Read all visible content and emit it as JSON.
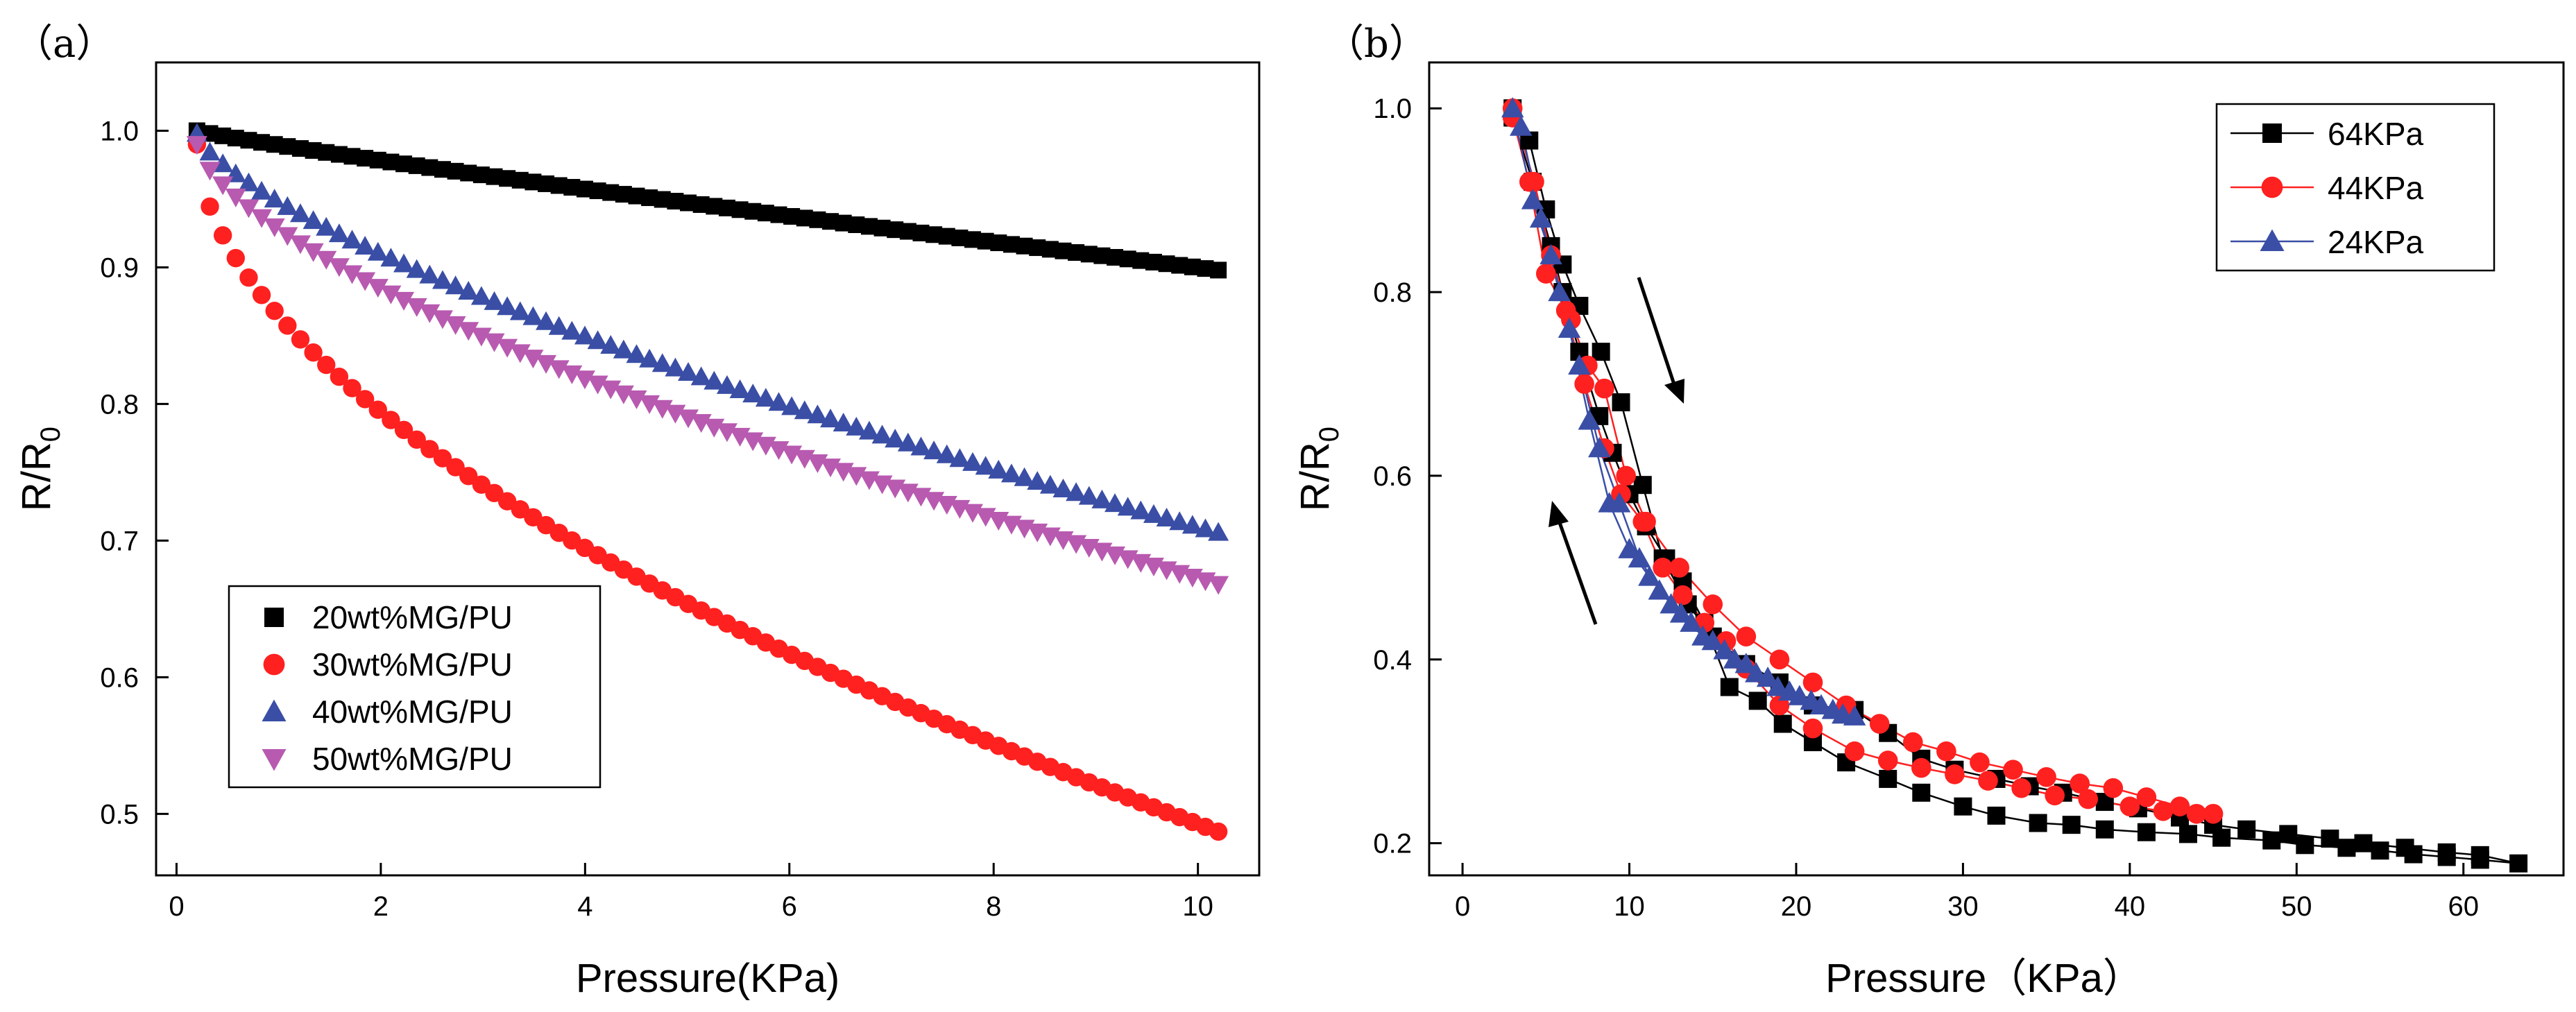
{
  "chart_data": [
    {
      "type": "scatter",
      "panel_label": "（a）",
      "xlabel": "Pressure(KPa)",
      "ylabel": "R/R",
      "ylabel_sub": "0",
      "xlim": [
        -0.2,
        10.6
      ],
      "ylim": [
        0.455,
        1.05
      ],
      "xticks": [
        0,
        2,
        4,
        6,
        8,
        10
      ],
      "yticks": [
        0.5,
        0.6,
        0.7,
        0.8,
        0.9,
        1.0
      ],
      "ytick_labels": [
        "0.5",
        "0.6",
        "0.7",
        "0.8",
        "0.9",
        "1.0"
      ],
      "legend_position": "bottom-left",
      "series": [
        {
          "name": "20wt%MG/PU",
          "color": "#000000",
          "marker": "square",
          "x_start": 0.2,
          "x_end": 10.2,
          "points": 80,
          "y_start": 1.0,
          "y_end": 0.898,
          "shape": 0.9
        },
        {
          "name": "30wt%MG/PU",
          "color": "#ff2020",
          "marker": "circle",
          "x_start": 0.2,
          "x_end": 10.2,
          "points": 80,
          "y_start": 0.99,
          "y_end": 0.487,
          "shape": 0.55
        },
        {
          "name": "40wt%MG/PU",
          "color": "#3a4ea6",
          "marker": "triangle-up",
          "x_start": 0.2,
          "x_end": 10.2,
          "points": 80,
          "y_start": 0.998,
          "y_end": 0.706,
          "shape": 0.7
        },
        {
          "name": "50wt%MG/PU",
          "color": "#b85ab0",
          "marker": "triangle-down",
          "x_start": 0.2,
          "x_end": 10.2,
          "points": 80,
          "y_start": 0.99,
          "y_end": 0.668,
          "shape": 0.65
        }
      ]
    },
    {
      "type": "line",
      "panel_label": "（b）",
      "xlabel": "Pressure（KPa）",
      "ylabel": "R/R",
      "ylabel_sub": "0",
      "xlim": [
        -2,
        66
      ],
      "ylim": [
        0.165,
        1.05
      ],
      "xticks": [
        0,
        10,
        20,
        30,
        40,
        50,
        60
      ],
      "yticks": [
        0.2,
        0.4,
        0.6,
        0.8,
        1.0
      ],
      "ytick_labels": [
        "0.2",
        "0.4",
        "0.6",
        "0.8",
        "1.0"
      ],
      "legend_position": "top-right",
      "series": [
        {
          "name": "64KPa",
          "color": "#000000",
          "marker": "square",
          "x": [
            3.0,
            4.2,
            5.3,
            6.0,
            7.0,
            8.2,
            9.0,
            10.0,
            11.0,
            12.2,
            13.2,
            14.5,
            16.0,
            17.7,
            19.2,
            21.0,
            23.0,
            25.5,
            27.5,
            30.0,
            32.0,
            34.5,
            36.5,
            38.5,
            41.0,
            43.5,
            45.5,
            48.5,
            50.5,
            53.0,
            55.0,
            57.0,
            59.0,
            61.0,
            63.3,
            61.0,
            59.0,
            56.5,
            54.0,
            52.0,
            49.5,
            47.0,
            45.0,
            43.0,
            40.5,
            38.5,
            36.0,
            34.0,
            32.0,
            29.5,
            27.5,
            25.5,
            23.5,
            21.0,
            19.0,
            17.0,
            15.0,
            13.5,
            12.0,
            10.8,
            9.5,
            8.3,
            7.0,
            6.0,
            5.0,
            4.0,
            3.0
          ],
          "y": [
            0.99,
            0.92,
            0.85,
            0.8,
            0.735,
            0.665,
            0.625,
            0.58,
            0.545,
            0.51,
            0.485,
            0.44,
            0.37,
            0.355,
            0.33,
            0.31,
            0.288,
            0.27,
            0.255,
            0.24,
            0.23,
            0.222,
            0.22,
            0.215,
            0.212,
            0.21,
            0.206,
            0.203,
            0.198,
            0.195,
            0.192,
            0.188,
            0.185,
            0.182,
            0.178,
            0.187,
            0.19,
            0.195,
            0.2,
            0.205,
            0.21,
            0.215,
            0.22,
            0.228,
            0.238,
            0.245,
            0.255,
            0.262,
            0.27,
            0.28,
            0.292,
            0.32,
            0.345,
            0.35,
            0.375,
            0.395,
            0.425,
            0.46,
            0.51,
            0.59,
            0.68,
            0.735,
            0.785,
            0.83,
            0.89,
            0.965,
            1.0
          ]
        },
        {
          "name": "44KPa",
          "color": "#ff2020",
          "marker": "circle",
          "x": [
            3.0,
            4.0,
            5.0,
            6.2,
            7.3,
            8.5,
            9.5,
            10.8,
            12.0,
            13.2,
            14.5,
            15.8,
            17.0,
            19.0,
            21.0,
            23.5,
            25.5,
            27.5,
            29.5,
            31.5,
            33.5,
            35.5,
            37.5,
            40.0,
            42.0,
            44.0,
            45.0,
            43.0,
            41.0,
            39.0,
            37.0,
            35.0,
            33.0,
            31.0,
            29.0,
            27.0,
            25.0,
            23.0,
            21.0,
            19.0,
            17.0,
            15.0,
            13.0,
            11.0,
            9.8,
            8.5,
            7.5,
            6.5,
            5.3,
            4.3,
            3.0
          ],
          "y": [
            0.99,
            0.92,
            0.82,
            0.78,
            0.7,
            0.63,
            0.58,
            0.55,
            0.5,
            0.47,
            0.44,
            0.42,
            0.39,
            0.35,
            0.325,
            0.3,
            0.29,
            0.282,
            0.275,
            0.268,
            0.26,
            0.252,
            0.248,
            0.24,
            0.235,
            0.232,
            0.232,
            0.24,
            0.25,
            0.26,
            0.265,
            0.272,
            0.28,
            0.288,
            0.3,
            0.31,
            0.33,
            0.35,
            0.375,
            0.4,
            0.425,
            0.46,
            0.5,
            0.55,
            0.6,
            0.695,
            0.72,
            0.77,
            0.84,
            0.92,
            1.0
          ]
        },
        {
          "name": "24KPa",
          "color": "#3a4ea6",
          "marker": "triangle-up",
          "x": [
            3.0,
            4.2,
            5.3,
            6.4,
            7.6,
            8.8,
            10.0,
            11.2,
            12.5,
            13.7,
            15.0,
            16.3,
            17.6,
            18.9,
            20.2,
            21.5,
            22.8,
            23.5,
            22.2,
            20.9,
            19.6,
            18.3,
            17.0,
            15.7,
            14.4,
            13.1,
            11.8,
            10.6,
            9.4,
            8.2,
            7.0,
            5.8,
            4.7,
            3.5
          ],
          "y": [
            1.0,
            0.9,
            0.84,
            0.76,
            0.66,
            0.57,
            0.52,
            0.49,
            0.46,
            0.44,
            0.42,
            0.4,
            0.385,
            0.37,
            0.36,
            0.35,
            0.34,
            0.338,
            0.345,
            0.355,
            0.365,
            0.38,
            0.395,
            0.41,
            0.425,
            0.45,
            0.475,
            0.51,
            0.57,
            0.63,
            0.72,
            0.8,
            0.88,
            0.98
          ]
        }
      ]
    }
  ]
}
